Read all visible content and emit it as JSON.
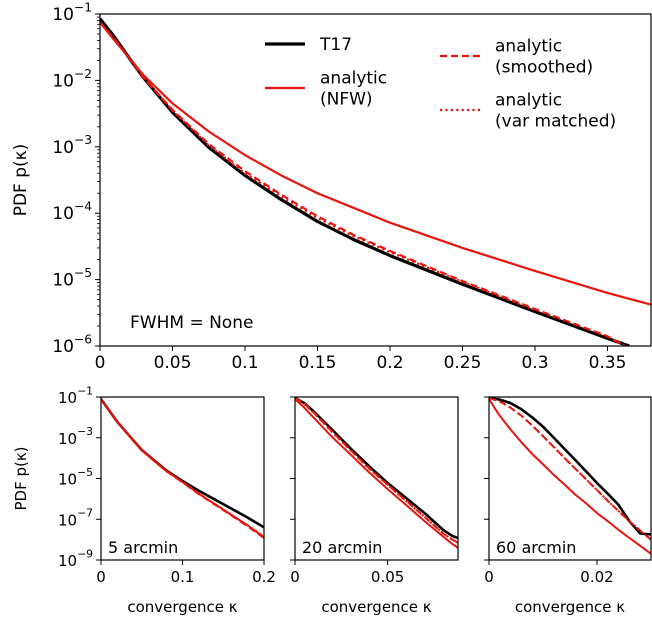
{
  "chart_data": [
    {
      "type": "line",
      "ylabel": "PDF p(κ)",
      "xlabel": "",
      "yscale": "log",
      "xlim": [
        0,
        0.38
      ],
      "ylim": [
        1e-06,
        0.1
      ],
      "xticks": [
        0,
        0.05,
        0.1,
        0.15,
        0.2,
        0.25,
        0.3,
        0.35
      ],
      "xtick_labels": [
        "0",
        "0.05",
        "0.1",
        "0.15",
        "0.2",
        "0.25",
        "0.3",
        "0.35"
      ],
      "yticks": [
        1e-06,
        1e-05,
        0.0001,
        0.001,
        0.01,
        0.1
      ],
      "ytick_labels": [
        [
          "10",
          "−6"
        ],
        [
          "10",
          "−5"
        ],
        [
          "10",
          "−4"
        ],
        [
          "10",
          "−3"
        ],
        [
          "10",
          "−2"
        ],
        [
          "10",
          "−1"
        ]
      ],
      "annotation": "FWHM = None",
      "legend_position": "top-right",
      "series": [
        {
          "name": "T17",
          "color": "#000000",
          "style": "solid",
          "width": 3.2,
          "x": [
            0,
            0.01,
            0.02,
            0.03,
            0.05,
            0.075,
            0.1,
            0.125,
            0.15,
            0.175,
            0.2,
            0.25,
            0.3,
            0.35,
            0.365
          ],
          "y": [
            0.085,
            0.045,
            0.022,
            0.011,
            0.0033,
            0.00098,
            0.00037,
            0.00016,
            7.5e-05,
            4e-05,
            2.3e-05,
            8.5e-06,
            3.3e-06,
            1.3e-06,
            1e-06
          ]
        },
        {
          "name": "analytic (NFW)",
          "color": "#e8150f",
          "style": "solid",
          "width": 2.2,
          "x": [
            0,
            0.01,
            0.02,
            0.03,
            0.05,
            0.075,
            0.1,
            0.125,
            0.15,
            0.175,
            0.2,
            0.25,
            0.3,
            0.35,
            0.38
          ],
          "y": [
            0.075,
            0.04,
            0.022,
            0.012,
            0.0045,
            0.0017,
            0.00075,
            0.00037,
            0.0002,
            0.00012,
            7.2e-05,
            3e-05,
            1.35e-05,
            6.3e-06,
            4.2e-06
          ]
        },
        {
          "name": "analytic (smoothed)",
          "color": "#e8150f",
          "style": "dashed",
          "width": 2.2,
          "x": [
            0,
            0.01,
            0.02,
            0.03,
            0.05,
            0.075,
            0.1,
            0.125,
            0.15,
            0.175,
            0.2,
            0.25,
            0.3,
            0.35,
            0.362
          ],
          "y": [
            0.075,
            0.042,
            0.022,
            0.011,
            0.0036,
            0.0011,
            0.00043,
            0.00019,
            9e-05,
            4.7e-05,
            2.7e-05,
            9.5e-06,
            3.6e-06,
            1.4e-06,
            1e-06
          ]
        },
        {
          "name": "analytic (var matched)",
          "color": "#e8150f",
          "style": "dotted",
          "width": 2.2,
          "x": [
            0,
            0.01,
            0.02,
            0.03,
            0.05,
            0.075,
            0.1,
            0.125,
            0.15,
            0.175,
            0.2,
            0.25,
            0.3,
            0.35,
            0.362
          ],
          "y": [
            0.075,
            0.042,
            0.022,
            0.011,
            0.0035,
            0.00105,
            0.0004,
            0.00018,
            8.5e-05,
            4.5e-05,
            2.6e-05,
            9.2e-06,
            3.5e-06,
            1.4e-06,
            1e-06
          ]
        }
      ],
      "legend": {
        "entries": [
          {
            "series": 0,
            "lines": [
              "T17"
            ]
          },
          {
            "series": 1,
            "lines": [
              "analytic",
              "(NFW)"
            ]
          },
          {
            "series": 2,
            "lines": [
              "analytic",
              "(smoothed)"
            ]
          },
          {
            "series": 3,
            "lines": [
              "analytic",
              "(var matched)"
            ]
          }
        ]
      }
    },
    {
      "type": "line",
      "ylabel": "PDF p(κ)",
      "xlabel": "convergence κ",
      "yscale": "log",
      "xlim": [
        0,
        0.2
      ],
      "ylim": [
        1e-09,
        0.1
      ],
      "xticks": [
        0,
        0.1,
        0.2
      ],
      "xtick_labels": [
        "0",
        "0.1",
        "0.2"
      ],
      "yticks": [
        1e-09,
        1e-07,
        1e-05,
        0.001,
        0.1
      ],
      "ytick_labels": [
        [
          "10",
          "−9"
        ],
        [
          "10",
          "−7"
        ],
        [
          "10",
          "−5"
        ],
        [
          "10",
          "−3"
        ],
        [
          "10",
          "−1"
        ]
      ],
      "annotation": "5 arcmin",
      "series": [
        {
          "name": "T17",
          "color": "#000000",
          "style": "solid",
          "width": 2.6,
          "x": [
            0,
            0.02,
            0.05,
            0.08,
            0.1,
            0.12,
            0.15,
            0.18,
            0.2
          ],
          "y": [
            0.08,
            0.006,
            0.00025,
            2.5e-05,
            7.5e-06,
            2.5e-06,
            5.5e-07,
            1.2e-07,
            4e-08
          ]
        },
        {
          "name": "analytic (NFW)",
          "color": "#e8150f",
          "style": "solid",
          "width": 2.0,
          "x": [
            0,
            0.02,
            0.05,
            0.08,
            0.1,
            0.12,
            0.15,
            0.18,
            0.2
          ],
          "y": [
            0.08,
            0.006,
            0.00025,
            2.4e-05,
            6.8e-06,
            1.8e-06,
            3e-07,
            5e-08,
            1.3e-08
          ]
        },
        {
          "name": "analytic (smoothed)",
          "color": "#e8150f",
          "style": "dashed",
          "width": 2.0,
          "x": [
            0,
            0.02,
            0.05,
            0.08,
            0.1,
            0.12,
            0.15,
            0.18,
            0.2
          ],
          "y": [
            0.08,
            0.006,
            0.00024,
            2.3e-05,
            6.5e-06,
            1.7e-06,
            2.8e-07,
            4.5e-08,
            1.2e-08
          ]
        },
        {
          "name": "analytic (var matched)",
          "color": "#e8150f",
          "style": "dotted",
          "width": 2.0,
          "x": [
            0,
            0.02,
            0.05,
            0.08,
            0.1,
            0.12,
            0.15,
            0.18,
            0.2
          ],
          "y": [
            0.08,
            0.006,
            0.00024,
            2.3e-05,
            6.6e-06,
            1.8e-06,
            3e-07,
            5e-08,
            1.4e-08
          ]
        }
      ]
    },
    {
      "type": "line",
      "ylabel": "",
      "xlabel": "convergence κ",
      "yscale": "log",
      "xlim": [
        0,
        0.088
      ],
      "ylim": [
        1e-09,
        0.1
      ],
      "xticks": [
        0,
        0.05
      ],
      "xtick_labels": [
        "0",
        "0.05"
      ],
      "yticks": [
        1e-09,
        1e-07,
        1e-05,
        0.001,
        0.1
      ],
      "annotation": "20 arcmin",
      "series": [
        {
          "name": "T17",
          "color": "#000000",
          "style": "solid",
          "width": 2.6,
          "x": [
            0,
            0.005,
            0.01,
            0.02,
            0.03,
            0.04,
            0.05,
            0.06,
            0.07,
            0.08,
            0.085,
            0.088
          ],
          "y": [
            0.09,
            0.05,
            0.02,
            0.0025,
            0.0003,
            4e-05,
            6e-06,
            1.1e-06,
            2e-07,
            3e-08,
            1.5e-08,
            1.2e-08
          ]
        },
        {
          "name": "analytic (NFW)",
          "color": "#e8150f",
          "style": "solid",
          "width": 2.0,
          "x": [
            0,
            0.005,
            0.01,
            0.02,
            0.03,
            0.04,
            0.05,
            0.06,
            0.07,
            0.08,
            0.085,
            0.088
          ],
          "y": [
            0.08,
            0.03,
            0.01,
            0.0011,
            0.00015,
            2e-05,
            3e-06,
            5e-07,
            8e-08,
            1.4e-08,
            6e-09,
            4e-09
          ]
        },
        {
          "name": "analytic (smoothed)",
          "color": "#e8150f",
          "style": "dashed",
          "width": 2.0,
          "x": [
            0,
            0.005,
            0.01,
            0.02,
            0.03,
            0.04,
            0.05,
            0.06,
            0.07,
            0.08,
            0.085,
            0.088
          ],
          "y": [
            0.09,
            0.048,
            0.018,
            0.002,
            0.00025,
            3.2e-05,
            5e-06,
            8e-07,
            1.3e-07,
            2e-08,
            1e-08,
            7e-09
          ]
        },
        {
          "name": "analytic (var matched)",
          "color": "#e8150f",
          "style": "dotted",
          "width": 2.0,
          "x": [
            0,
            0.005,
            0.01,
            0.02,
            0.03,
            0.04,
            0.05,
            0.06,
            0.07,
            0.08,
            0.085,
            0.088
          ],
          "y": [
            0.09,
            0.046,
            0.017,
            0.0019,
            0.00024,
            3e-05,
            4.8e-06,
            7.8e-07,
            1.3e-07,
            2e-08,
            1e-08,
            7e-09
          ]
        }
      ]
    },
    {
      "type": "line",
      "ylabel": "",
      "xlabel": "convergence κ",
      "yscale": "log",
      "xlim": [
        0,
        0.03
      ],
      "ylim": [
        1e-09,
        0.1
      ],
      "xticks": [
        0,
        0.02
      ],
      "xtick_labels": [
        "0",
        "0.02"
      ],
      "yticks": [
        1e-09,
        1e-07,
        1e-05,
        0.001,
        0.1
      ],
      "annotation": "60 arcmin",
      "series": [
        {
          "name": "T17",
          "color": "#000000",
          "style": "solid",
          "width": 2.6,
          "x": [
            0,
            0.002,
            0.004,
            0.006,
            0.008,
            0.01,
            0.012,
            0.014,
            0.016,
            0.018,
            0.02,
            0.022,
            0.024,
            0.026,
            0.028,
            0.03
          ],
          "y": [
            0.09,
            0.075,
            0.05,
            0.025,
            0.01,
            0.0035,
            0.001,
            0.00028,
            8e-05,
            2.2e-05,
            6e-06,
            1.8e-06,
            5e-07,
            8e-08,
            2e-08,
            1.8e-08
          ]
        },
        {
          "name": "analytic (NFW)",
          "color": "#e8150f",
          "style": "solid",
          "width": 2.0,
          "x": [
            0,
            0.001,
            0.002,
            0.004,
            0.006,
            0.008,
            0.01,
            0.012,
            0.014,
            0.016,
            0.018,
            0.02,
            0.022,
            0.024,
            0.026,
            0.028,
            0.03
          ],
          "y": [
            0.08,
            0.03,
            0.012,
            0.0025,
            0.0006,
            0.00016,
            5e-05,
            1.5e-05,
            5e-06,
            1.6e-06,
            6e-07,
            2e-07,
            8e-08,
            3e-08,
            1.2e-08,
            5e-09,
            2e-09
          ]
        },
        {
          "name": "analytic (smoothed)",
          "color": "#e8150f",
          "style": "dashed",
          "width": 2.0,
          "x": [
            0,
            0.002,
            0.004,
            0.006,
            0.008,
            0.01,
            0.012,
            0.014,
            0.016,
            0.018,
            0.02,
            0.022,
            0.024,
            0.026,
            0.028,
            0.03
          ],
          "y": [
            0.09,
            0.06,
            0.03,
            0.012,
            0.004,
            0.0012,
            0.00035,
            0.0001,
            3e-05,
            9e-06,
            2.7e-06,
            8e-07,
            2.5e-07,
            8e-08,
            2.8e-08,
            1e-08
          ]
        },
        {
          "name": "analytic (var matched)",
          "color": "#e8150f",
          "style": "dotted",
          "width": 2.0,
          "x": [
            0,
            0.002,
            0.004,
            0.006,
            0.008,
            0.01,
            0.012,
            0.014,
            0.016,
            0.018,
            0.02,
            0.022,
            0.024,
            0.026,
            0.028,
            0.03
          ],
          "y": [
            0.09,
            0.06,
            0.03,
            0.012,
            0.004,
            0.0012,
            0.00035,
            0.0001,
            3e-05,
            9e-06,
            2.7e-06,
            8e-07,
            2.5e-07,
            8e-08,
            2.8e-08,
            1e-08
          ]
        }
      ]
    }
  ]
}
